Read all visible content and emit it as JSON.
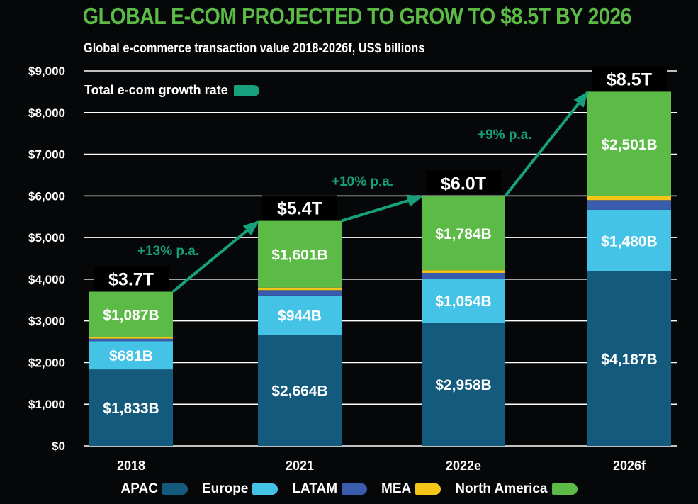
{
  "header": {
    "title": "GLOBAL E-COM PROJECTED TO GROW TO $8.5T BY 2026",
    "subtitle": "Global e-commerce transaction value 2018-2026f, US$ billions"
  },
  "rate_legend": {
    "label": "Total e-com growth rate",
    "color": "#16a07c"
  },
  "chart_data": {
    "type": "bar",
    "stacked": true,
    "title": "GLOBAL E-COM PROJECTED TO GROW TO $8.5T BY 2026",
    "subtitle": "Global e-commerce transaction value 2018-2026f, US$ billions",
    "xlabel": "",
    "ylabel": "",
    "ylim": [
      0,
      9000
    ],
    "yticks": [
      0,
      1000,
      2000,
      3000,
      4000,
      5000,
      6000,
      7000,
      8000,
      9000
    ],
    "ytick_labels": [
      "$0",
      "$1,000",
      "$2,000",
      "$3,000",
      "$4,000",
      "$5,000",
      "$6,000",
      "$7,000",
      "$8,000",
      "$9,000"
    ],
    "grid": true,
    "legend_position": "bottom",
    "categories": [
      "2018",
      "2021",
      "2022e",
      "2026f"
    ],
    "series": [
      {
        "name": "APAC",
        "color": "#135a7d",
        "values": [
          1833,
          2664,
          2958,
          4187
        ],
        "labels": [
          "$1,833B",
          "$2,664B",
          "$2,958B",
          "$4,187B"
        ]
      },
      {
        "name": "Europe",
        "color": "#45c3e6",
        "values": [
          681,
          944,
          1054,
          1480
        ],
        "labels": [
          "$681B",
          "$944B",
          "$1,054B",
          "$1,480B"
        ]
      },
      {
        "name": "LATAM",
        "color": "#3a5cad",
        "values": [
          60,
          130,
          140,
          232
        ],
        "labels": [
          "",
          "",
          "",
          ""
        ]
      },
      {
        "name": "MEA",
        "color": "#f5c518",
        "values": [
          39,
          61,
          64,
          100
        ],
        "labels": [
          "",
          "",
          "",
          ""
        ]
      },
      {
        "name": "North America",
        "color": "#5bbb46",
        "values": [
          1087,
          1601,
          1784,
          2501
        ],
        "labels": [
          "$1,087B",
          "$1,601B",
          "$1,784B",
          "$2,501B"
        ]
      }
    ],
    "totals": [
      3700,
      5400,
      6000,
      8500
    ],
    "total_labels": [
      "$3.7T",
      "$5.4T",
      "$6.0T",
      "$8.5T"
    ],
    "growth_annotations": [
      {
        "from": "2018",
        "to": "2021",
        "label": "+13% p.a."
      },
      {
        "from": "2021",
        "to": "2022e",
        "label": "+10% p.a."
      },
      {
        "from": "2022e",
        "to": "2026f",
        "label": "+9% p.a."
      }
    ]
  }
}
